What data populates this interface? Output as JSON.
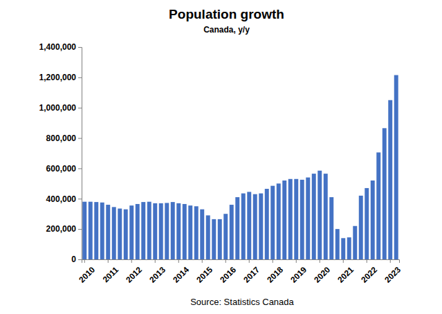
{
  "chart_data": {
    "type": "bar",
    "title": "Population growth",
    "subtitle": "Canada, y/y",
    "source": "Source: Statistics Canada",
    "categories": [
      "2010",
      null,
      null,
      null,
      "2011",
      null,
      null,
      null,
      "2012",
      null,
      null,
      null,
      "2013",
      null,
      null,
      null,
      "2014",
      null,
      null,
      null,
      "2015",
      null,
      null,
      null,
      "2016",
      null,
      null,
      null,
      "2017",
      null,
      null,
      null,
      "2018",
      null,
      null,
      null,
      "2019",
      null,
      null,
      null,
      "2020",
      null,
      null,
      null,
      "2021",
      null,
      null,
      null,
      "2022",
      null,
      null,
      null,
      "2023",
      null
    ],
    "values": [
      380000,
      380000,
      378000,
      375000,
      360000,
      345000,
      335000,
      330000,
      355000,
      365000,
      378000,
      380000,
      370000,
      370000,
      372000,
      378000,
      370000,
      365000,
      355000,
      350000,
      330000,
      290000,
      265000,
      265000,
      300000,
      360000,
      410000,
      435000,
      445000,
      430000,
      435000,
      465000,
      485000,
      500000,
      520000,
      530000,
      530000,
      525000,
      540000,
      565000,
      585000,
      565000,
      410000,
      200000,
      140000,
      145000,
      220000,
      420000,
      470000,
      520000,
      705000,
      865000,
      1050000,
      1215000
    ],
    "color": "#4472c4",
    "ylim": [
      0,
      1400000
    ],
    "yticks": [
      0,
      {
        "value": 200000,
        "label": "200,000"
      },
      {
        "value": 400000,
        "label": "400,000"
      },
      {
        "value": 600000,
        "label": "600,000"
      },
      {
        "value": 800000,
        "label": "800,000"
      },
      {
        "value": 1000000,
        "label": "1,000,000"
      },
      {
        "value": 1200000,
        "label": "1,200,000"
      },
      {
        "value": 1400000,
        "label": "1,400,000"
      }
    ],
    "grid": false
  }
}
